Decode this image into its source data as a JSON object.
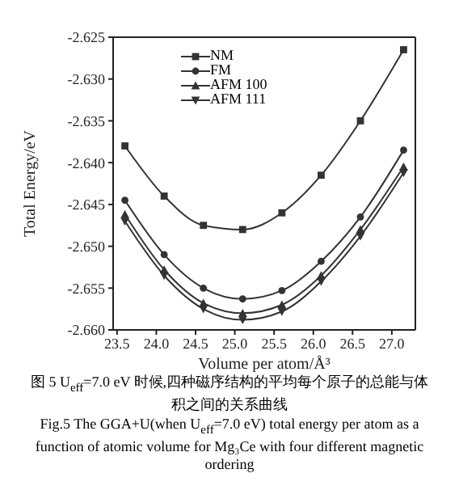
{
  "chart_data": {
    "type": "line",
    "xlabel": "Volume per atom/Å³",
    "ylabel": "Total Energy/eV",
    "x": [
      23.6,
      24.1,
      24.6,
      25.1,
      25.6,
      26.1,
      26.6,
      27.15
    ],
    "series": [
      {
        "name": "NM",
        "color": "#333333",
        "marker": "square",
        "values": [
          -2.638,
          -2.644,
          -2.6475,
          -2.648,
          -2.646,
          -2.6415,
          -2.635,
          -2.6265
        ]
      },
      {
        "name": "FM",
        "color": "#333333",
        "marker": "circle",
        "values": [
          -2.6445,
          -2.651,
          -2.655,
          -2.6563,
          -2.6553,
          -2.6518,
          -2.6465,
          -2.6385
        ]
      },
      {
        "name": "AFM 100",
        "color": "#333333",
        "marker": "triangle",
        "values": [
          -2.6462,
          -2.6528,
          -2.6568,
          -2.658,
          -2.657,
          -2.6535,
          -2.648,
          -2.6405
        ]
      },
      {
        "name": "AFM 111",
        "color": "#333333",
        "marker": "triangle-down",
        "values": [
          -2.647,
          -2.6535,
          -2.6575,
          -2.6588,
          -2.6578,
          -2.6542,
          -2.6488,
          -2.6412
        ]
      }
    ],
    "xlim": [
      23.45,
      27.3
    ],
    "xticks": [
      23.5,
      {
        "value": 24,
        "label": "24.0"
      },
      24.5,
      {
        "value": 25,
        "label": "25.0"
      },
      25.5,
      {
        "value": 26,
        "label": "26.0"
      },
      26.5,
      {
        "value": 27,
        "label": "27.0"
      }
    ],
    "ylim": [
      -2.66,
      -2.625
    ],
    "yticks": [
      {
        "value": -2.66,
        "label": "-2.660"
      },
      -2.655,
      {
        "value": -2.65,
        "label": "-2.650"
      },
      -2.645,
      {
        "value": -2.64,
        "label": "-2.640"
      },
      -2.635,
      {
        "value": -2.63,
        "label": "-2.630"
      },
      -2.625
    ],
    "grid": false,
    "legend": "top",
    "line_style": "solid",
    "annotations": [
      "图 5  U$_{eff}$=7.0 eV 时候,四种磁序结构的平均每个原子的总能与体积之间的关系曲线",
      "Fig.5  The GGA+U(when U$_{eff}$=7.0 eV) total energy per atom as a function of atomic volume for Mg₃Ce with four different magnetic ordering"
    ]
  }
}
